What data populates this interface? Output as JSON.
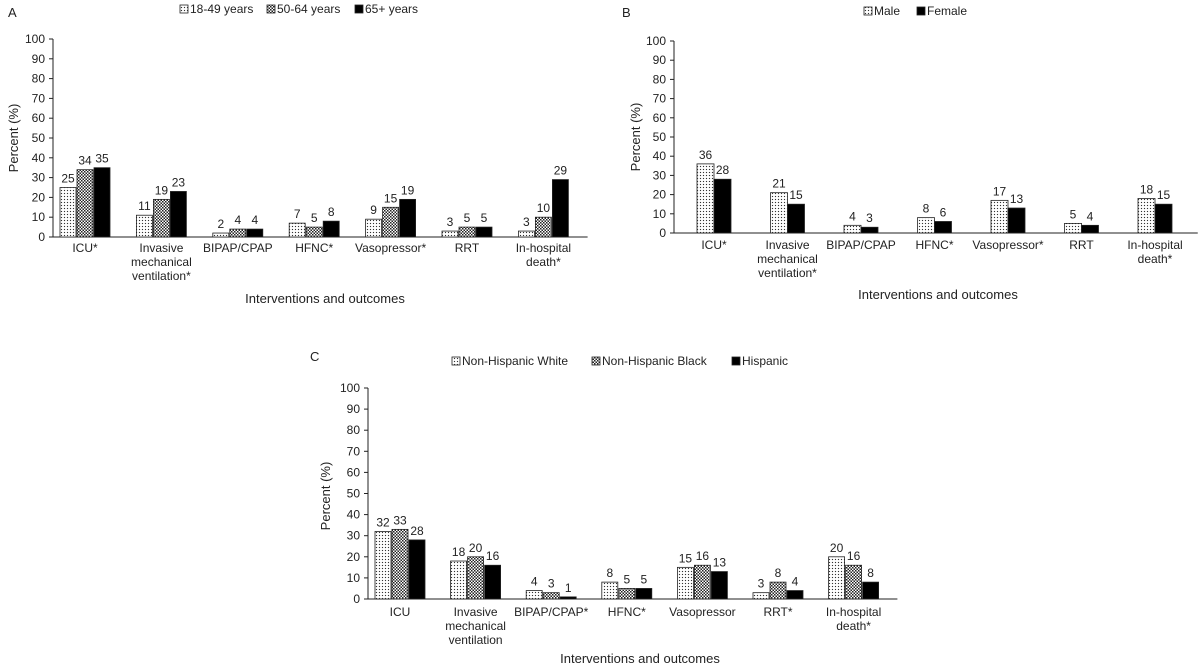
{
  "chart_data": [
    {
      "type": "bar",
      "panel_label": "A",
      "categories": [
        "ICU*",
        "Invasive mechanical ventilation*",
        "BIPAP/CPAP",
        "HFNC*",
        "Vasopressor*",
        "RRT",
        "In-hospital death*"
      ],
      "category_lines": [
        [
          "ICU*"
        ],
        [
          "Invasive",
          "mechanical",
          "ventilation*"
        ],
        [
          "BIPAP/CPAP"
        ],
        [
          "HFNC*"
        ],
        [
          "Vasopressor*"
        ],
        [
          "RRT"
        ],
        [
          "In-hospital",
          "death*"
        ]
      ],
      "series": [
        {
          "name": "18-49 years",
          "pattern": "dots",
          "values": [
            25,
            11,
            2,
            7,
            9,
            3,
            3
          ]
        },
        {
          "name": "50-64 years",
          "pattern": "checker",
          "values": [
            34,
            19,
            4,
            5,
            15,
            5,
            10
          ]
        },
        {
          "name": "65+ years",
          "pattern": "solid",
          "values": [
            35,
            23,
            4,
            8,
            19,
            5,
            29
          ]
        }
      ],
      "xlabel": "Interventions and outcomes",
      "ylabel": "Percent (%)",
      "ylim": [
        0,
        100
      ],
      "yticks": [
        0,
        10,
        20,
        30,
        40,
        50,
        60,
        70,
        80,
        90,
        100
      ],
      "grid": false,
      "legend_position": "top"
    },
    {
      "type": "bar",
      "panel_label": "B",
      "categories": [
        "ICU*",
        "Invasive mechanical ventilation*",
        "BIPAP/CPAP",
        "HFNC*",
        "Vasopressor*",
        "RRT",
        "In-hospital death*"
      ],
      "category_lines": [
        [
          "ICU*"
        ],
        [
          "Invasive",
          "mechanical",
          "ventilation*"
        ],
        [
          "BIPAP/CPAP"
        ],
        [
          "HFNC*"
        ],
        [
          "Vasopressor*"
        ],
        [
          "RRT"
        ],
        [
          "In-hospital",
          "death*"
        ]
      ],
      "series": [
        {
          "name": "Male",
          "pattern": "dots",
          "values": [
            36,
            21,
            4,
            8,
            17,
            5,
            18
          ]
        },
        {
          "name": "Female",
          "pattern": "solid",
          "values": [
            28,
            15,
            3,
            6,
            13,
            4,
            15
          ]
        }
      ],
      "xlabel": "Interventions and outcomes",
      "ylabel": "Percent (%)",
      "ylim": [
        0,
        100
      ],
      "yticks": [
        0,
        10,
        20,
        30,
        40,
        50,
        60,
        70,
        80,
        90,
        100
      ],
      "grid": false,
      "legend_position": "top"
    },
    {
      "type": "bar",
      "panel_label": "C",
      "categories": [
        "ICU",
        "Invasive mechanical ventilation",
        "BIPAP/CPAP*",
        "HFNC*",
        "Vasopressor",
        "RRT*",
        "In-hospital death*"
      ],
      "category_lines": [
        [
          "ICU"
        ],
        [
          "Invasive",
          "mechanical",
          "ventilation"
        ],
        [
          "BIPAP/CPAP*"
        ],
        [
          "HFNC*"
        ],
        [
          "Vasopressor"
        ],
        [
          "RRT*"
        ],
        [
          "In-hospital",
          "death*"
        ]
      ],
      "series": [
        {
          "name": "Non-Hispanic White",
          "pattern": "dots",
          "values": [
            32,
            18,
            4,
            8,
            15,
            3,
            20
          ]
        },
        {
          "name": "Non-Hispanic Black",
          "pattern": "checker",
          "values": [
            33,
            20,
            3,
            5,
            16,
            8,
            16
          ]
        },
        {
          "name": "Hispanic",
          "pattern": "solid",
          "values": [
            28,
            16,
            1,
            5,
            13,
            4,
            8
          ]
        }
      ],
      "xlabel": "Interventions and outcomes",
      "ylabel": "Percent (%)",
      "ylim": [
        0,
        100
      ],
      "yticks": [
        0,
        10,
        20,
        30,
        40,
        50,
        60,
        70,
        80,
        90,
        100
      ],
      "grid": false,
      "legend_position": "top"
    }
  ],
  "colors": {
    "bar_fill_light": "#e8e8e8",
    "bar_stroke": "#222222",
    "bar_solid": "#000000",
    "axis": "#222222"
  }
}
